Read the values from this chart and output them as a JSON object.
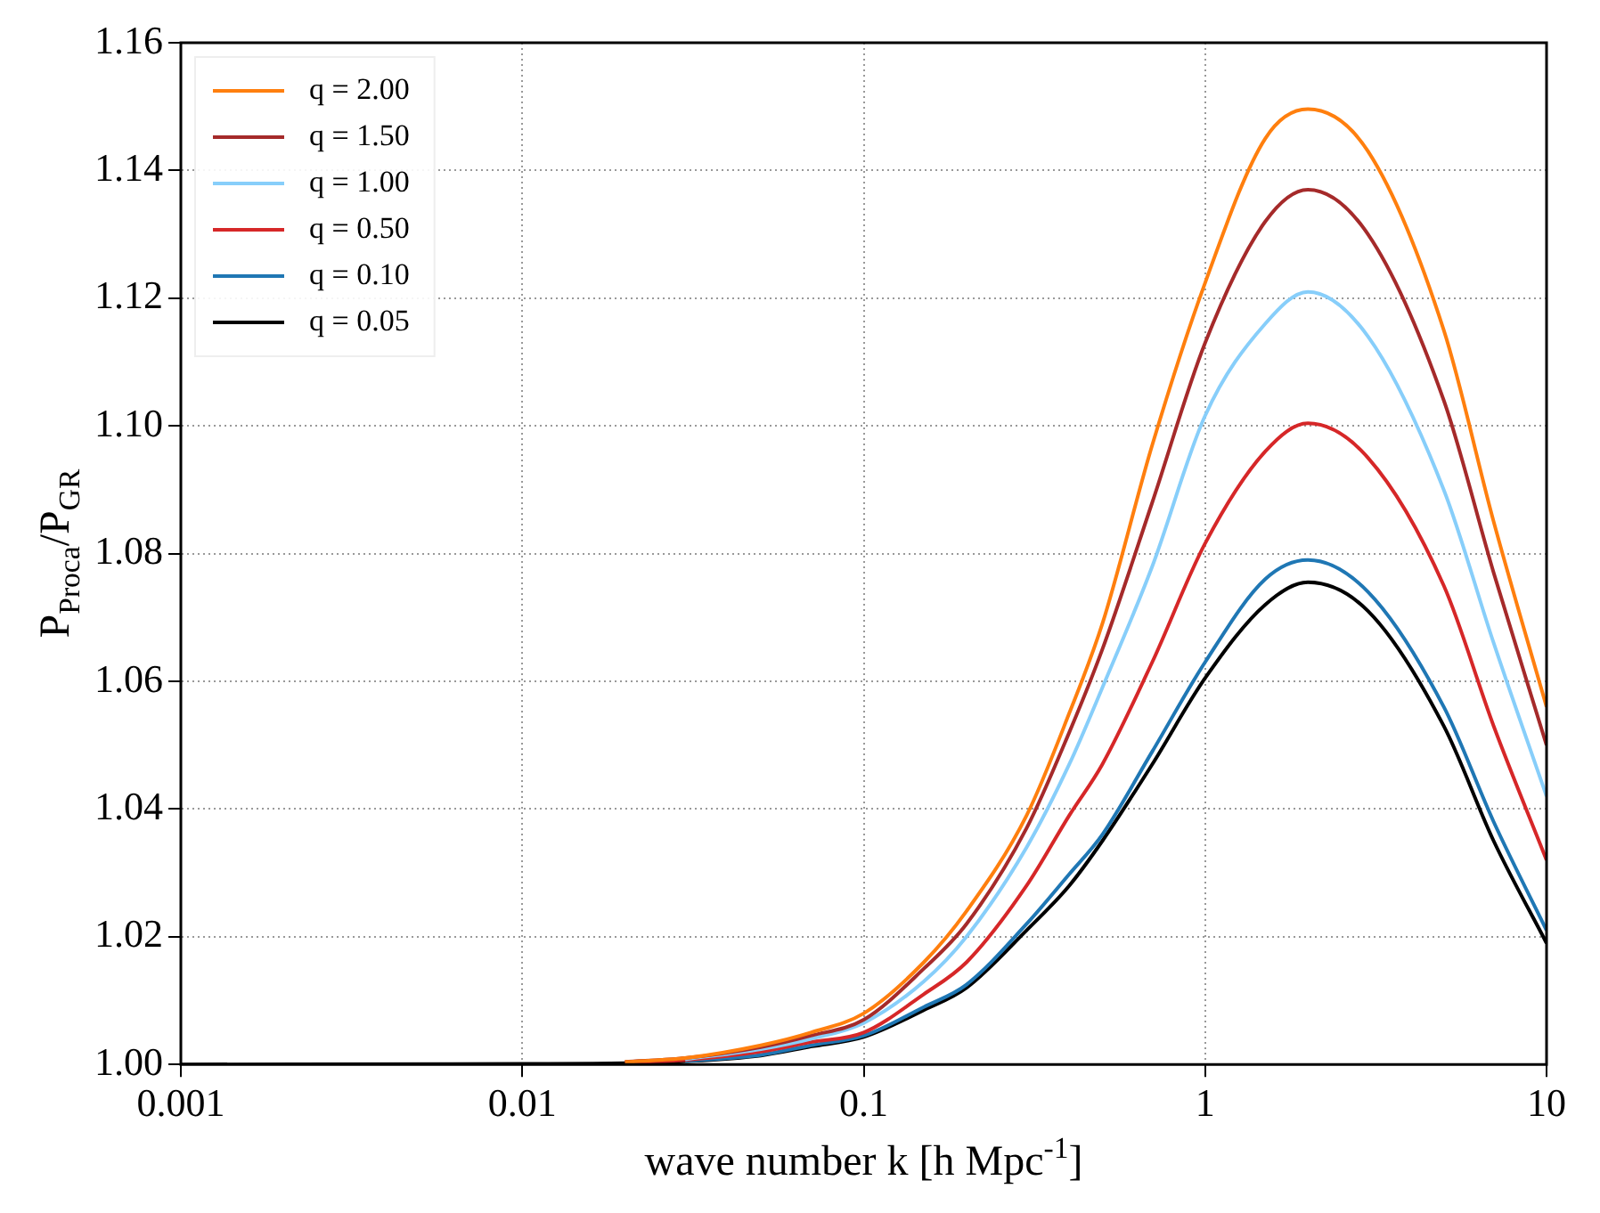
{
  "chart_data": {
    "type": "line",
    "xlabel": "wave number k [h Mpc$^{-1}$]",
    "ylabel": "P$_{Proca}$/P$_{GR}$",
    "x": [
      0.001,
      0.01,
      0.02,
      0.03,
      0.05,
      0.07,
      0.1,
      0.15,
      0.2,
      0.3,
      0.4,
      0.5,
      0.7,
      1,
      1.5,
      2,
      3,
      5,
      7,
      10
    ],
    "series": [
      {
        "name": "q = 2.00",
        "color": "#ff7f0e",
        "values": [
          null,
          null,
          1.0004,
          1.001,
          1.003,
          1.005,
          1.008,
          1.016,
          1.024,
          1.039,
          1.055,
          1.069,
          1.097,
          1.1224,
          1.145,
          1.1496,
          1.143,
          1.115,
          1.085,
          1.056
        ]
      },
      {
        "name": "q = 1.50",
        "color": "#a52a2a",
        "values": [
          null,
          null,
          1.0004,
          1.001,
          1.0027,
          1.0045,
          1.007,
          1.015,
          1.022,
          1.037,
          1.052,
          1.065,
          1.088,
          1.113,
          1.132,
          1.137,
          1.13,
          1.104,
          1.077,
          1.05
        ]
      },
      {
        "name": "q = 1.00",
        "color": "#87cefa",
        "values": [
          null,
          null,
          null,
          1.0008,
          1.0024,
          1.004,
          1.0065,
          1.013,
          1.02,
          1.034,
          1.047,
          1.059,
          1.078,
          1.1016,
          1.116,
          1.121,
          1.114,
          1.09,
          1.066,
          1.042
        ]
      },
      {
        "name": "q = 0.50",
        "color": "#d62728",
        "values": [
          null,
          null,
          1.0003,
          1.0007,
          1.002,
          1.0035,
          1.005,
          1.011,
          1.016,
          1.028,
          1.039,
          1.047,
          1.063,
          1.0816,
          1.096,
          1.1004,
          1.095,
          1.075,
          1.053,
          1.032
        ]
      },
      {
        "name": "q = 0.10",
        "color": "#1f77b4",
        "values": [
          null,
          null,
          null,
          1.0005,
          1.0015,
          1.003,
          1.0045,
          1.009,
          1.0125,
          1.022,
          1.0298,
          1.036,
          1.049,
          1.063,
          1.076,
          1.079,
          1.074,
          1.056,
          1.038,
          1.021
        ]
      },
      {
        "name": "q = 0.05",
        "color": "#000000",
        "values": [
          1.0,
          1.0001,
          1.0002,
          1.0005,
          1.0014,
          1.0028,
          1.0043,
          1.0085,
          1.012,
          1.021,
          1.028,
          1.035,
          1.047,
          1.0605,
          1.072,
          1.0755,
          1.071,
          1.053,
          1.035,
          1.019
        ]
      }
    ],
    "xlim": [
      0.001,
      10
    ],
    "xticks": [
      0.001,
      0.01,
      0.1,
      1,
      10
    ],
    "ylim": [
      1.0,
      1.16
    ],
    "yticks": [
      {
        "value": 1.0,
        "label": "1.00"
      },
      {
        "value": 1.02,
        "label": "1.02"
      },
      {
        "value": 1.04,
        "label": "1.04"
      },
      {
        "value": 1.06,
        "label": "1.06"
      },
      {
        "value": 1.08,
        "label": "1.08"
      },
      {
        "value": 1.1,
        "label": "1.10"
      },
      {
        "value": 1.12,
        "label": "1.12"
      },
      {
        "value": 1.14,
        "label": "1.14"
      },
      {
        "value": 1.16,
        "label": "1.16"
      }
    ],
    "log": "x",
    "grid": true,
    "legend": "top left",
    "marker": "none",
    "line_style": "solid"
  }
}
